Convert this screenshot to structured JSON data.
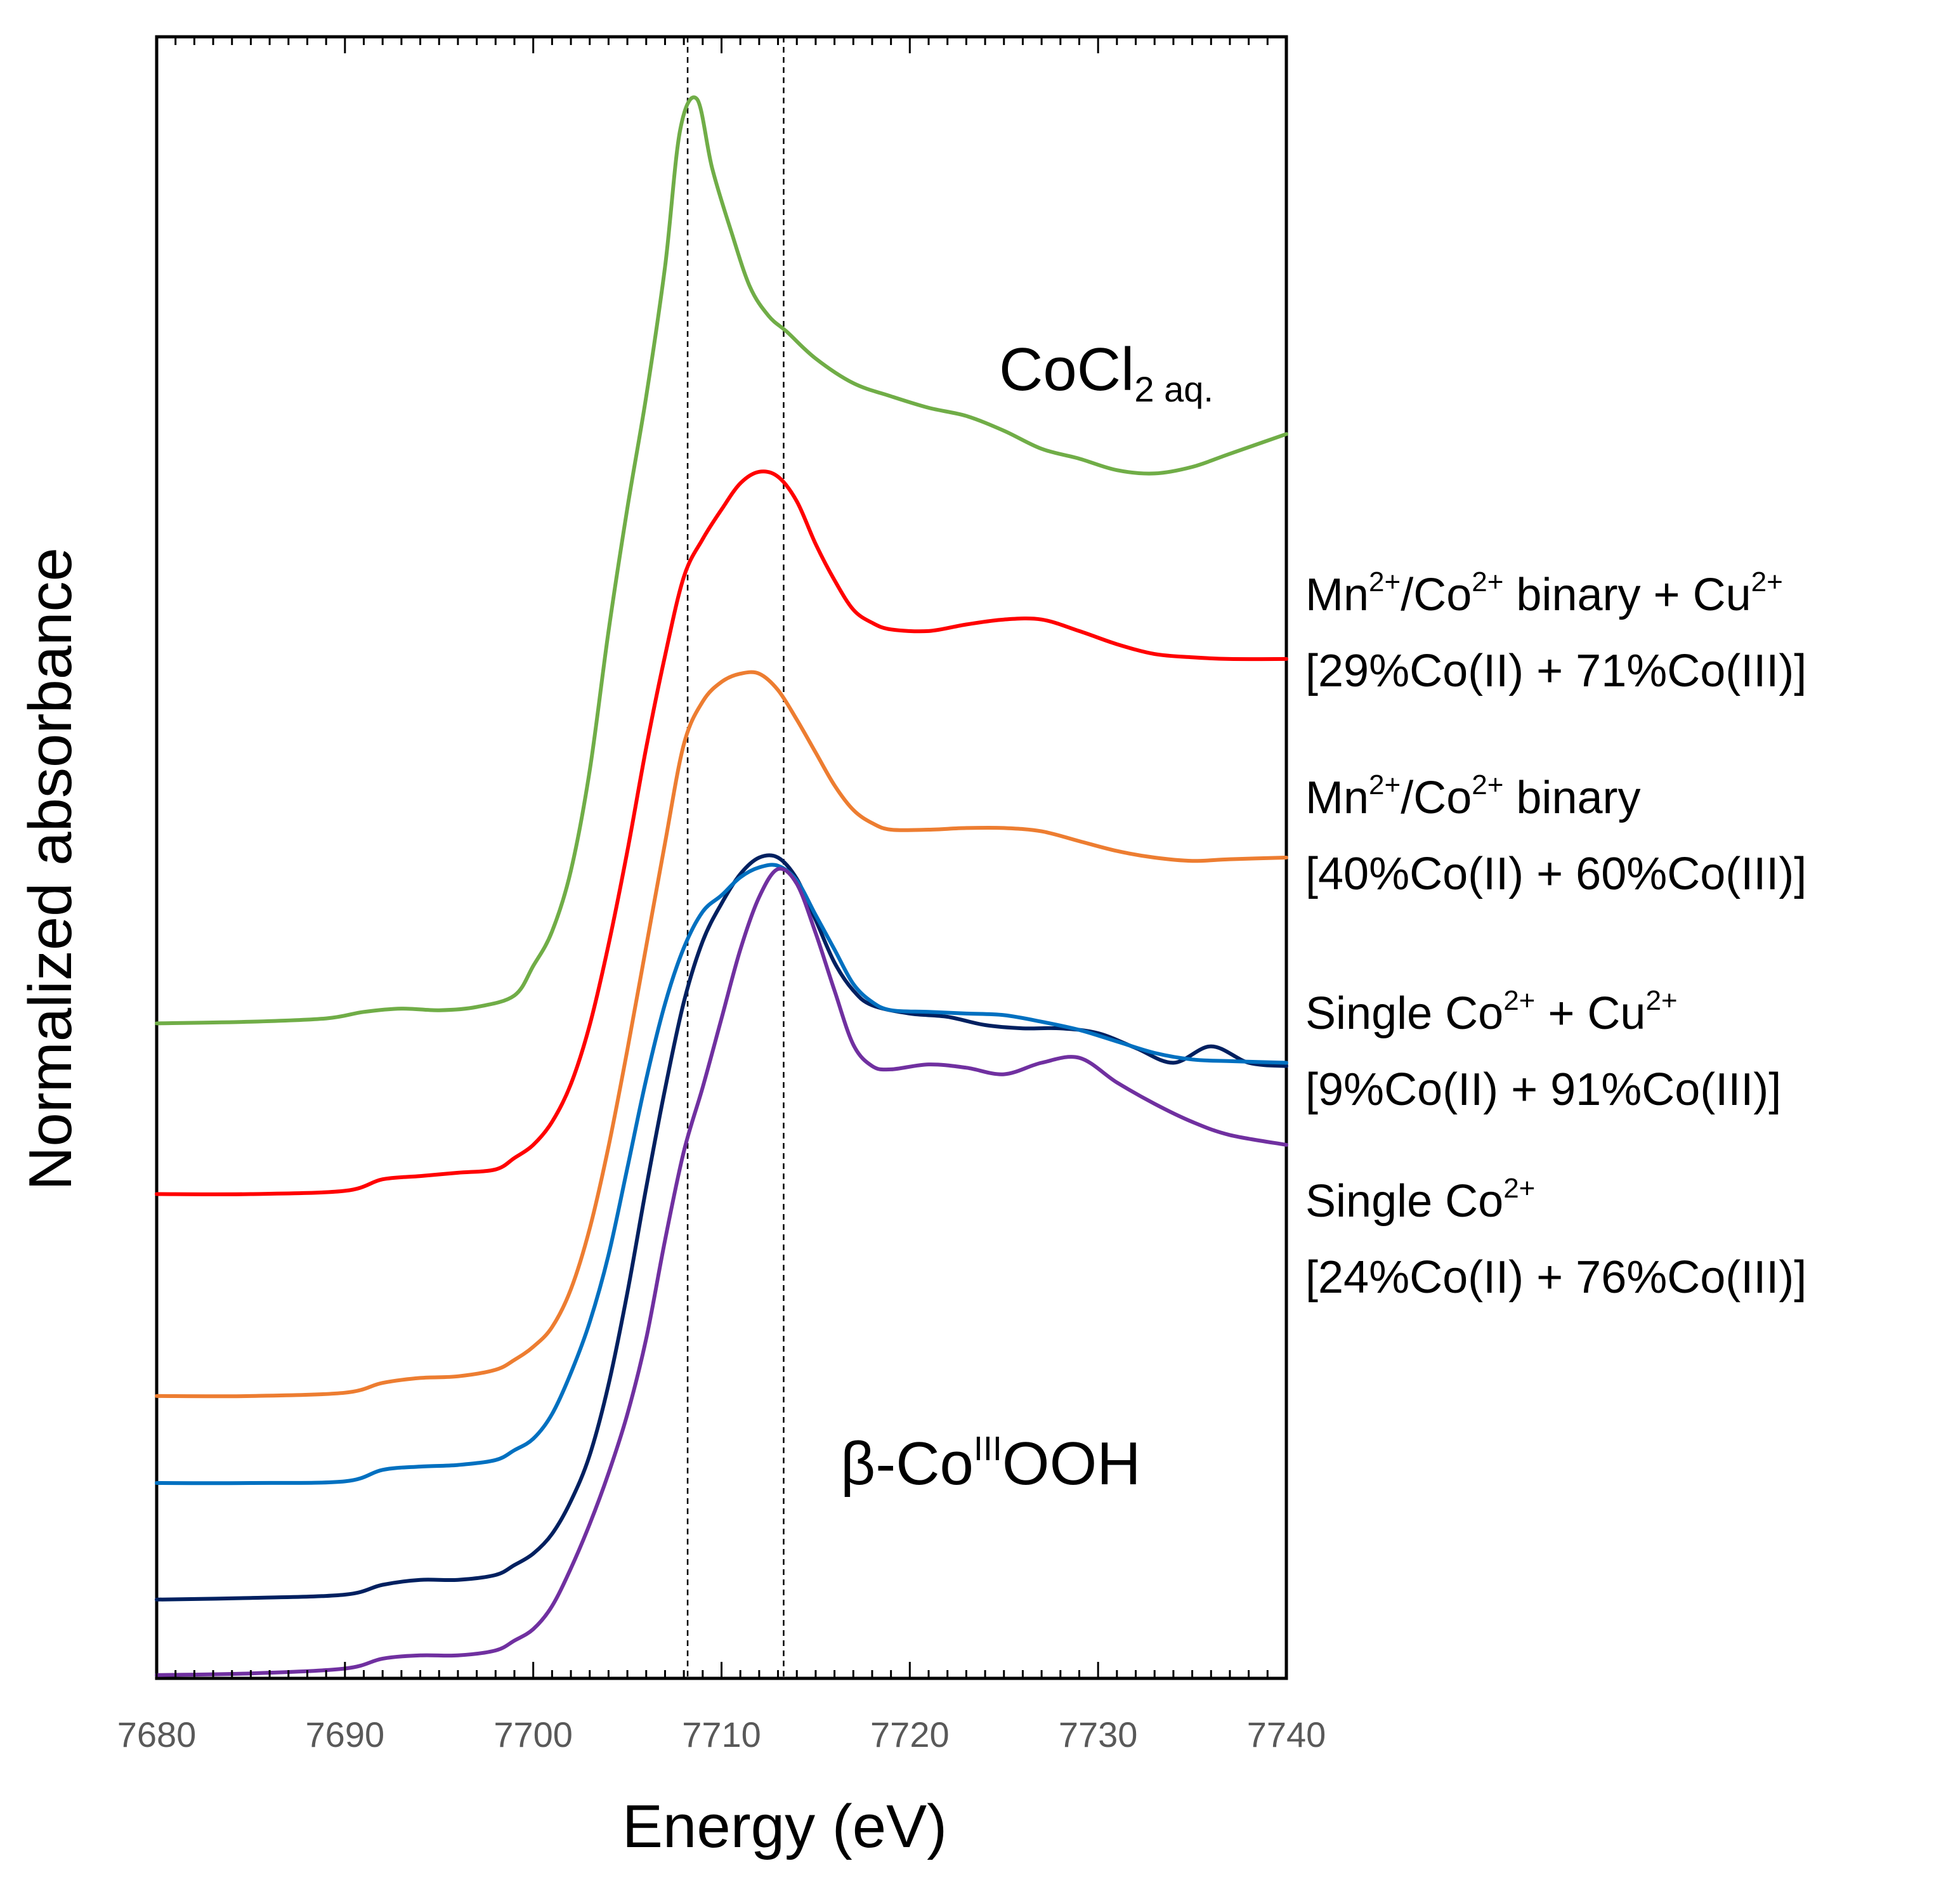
{
  "chart_data": {
    "type": "line",
    "title": "",
    "xlabel": "Energy (eV)",
    "ylabel": "Normalized absorbance",
    "xlim": [
      7680,
      7740
    ],
    "xticks": [
      "7680",
      "7690",
      "7700",
      "7710",
      "7720",
      "7730",
      "7740"
    ],
    "ylim": [
      0,
      1
    ],
    "grid": false,
    "reference_lines_x": [
      7708.2,
      7713.3
    ],
    "series": [
      {
        "name": "CoCl2 aq.",
        "color": "#70ad47",
        "label_parts": {
          "main": "CoCl",
          "sub": "2",
          "suffix": " aq."
        },
        "points": [
          [
            7680,
            0.601
          ],
          [
            7685,
            0.6
          ],
          [
            7689,
            0.598
          ],
          [
            7691,
            0.594
          ],
          [
            7693,
            0.592
          ],
          [
            7695,
            0.593
          ],
          [
            7697,
            0.591
          ],
          [
            7699,
            0.584
          ],
          [
            7700,
            0.566
          ],
          [
            7701,
            0.545
          ],
          [
            7702,
            0.508
          ],
          [
            7703,
            0.447
          ],
          [
            7704,
            0.362
          ],
          [
            7705,
            0.287
          ],
          [
            7706,
            0.219
          ],
          [
            7707,
            0.14
          ],
          [
            7707.8,
            0.057
          ],
          [
            7708.7,
            0.038
          ],
          [
            7709.5,
            0.08
          ],
          [
            7710.5,
            0.118
          ],
          [
            7711.5,
            0.152
          ],
          [
            7712.5,
            0.17
          ],
          [
            7713.5,
            0.18
          ],
          [
            7715,
            0.196
          ],
          [
            7717,
            0.211
          ],
          [
            7719,
            0.219
          ],
          [
            7721,
            0.226
          ],
          [
            7723,
            0.231
          ],
          [
            7725,
            0.24
          ],
          [
            7727,
            0.251
          ],
          [
            7729,
            0.257
          ],
          [
            7731,
            0.264
          ],
          [
            7733,
            0.266
          ],
          [
            7735,
            0.262
          ],
          [
            7737,
            0.254
          ],
          [
            7740,
            0.242
          ]
        ]
      },
      {
        "name": "Mn2+/Co2+ binary + Cu2+",
        "subtitle": "[29%Co(II) + 71%Co(III)]",
        "color": "#ff0000",
        "label_parts": {
          "a": "Mn",
          "a_sup": "2+",
          "b": "/Co",
          "b_sup": "2+",
          "c": " binary + Cu",
          "c_sup": "2+"
        },
        "points": [
          [
            7680,
            0.705
          ],
          [
            7685,
            0.705
          ],
          [
            7690,
            0.703
          ],
          [
            7692,
            0.696
          ],
          [
            7694,
            0.694
          ],
          [
            7696,
            0.692
          ],
          [
            7698,
            0.69
          ],
          [
            7699,
            0.683
          ],
          [
            7700,
            0.675
          ],
          [
            7701,
            0.661
          ],
          [
            7702,
            0.638
          ],
          [
            7703,
            0.602
          ],
          [
            7704,
            0.553
          ],
          [
            7705,
            0.496
          ],
          [
            7706,
            0.433
          ],
          [
            7707,
            0.377
          ],
          [
            7708,
            0.329
          ],
          [
            7709,
            0.306
          ],
          [
            7710,
            0.288
          ],
          [
            7711,
            0.272
          ],
          [
            7712,
            0.265
          ],
          [
            7713,
            0.268
          ],
          [
            7714,
            0.283
          ],
          [
            7715,
            0.309
          ],
          [
            7716,
            0.331
          ],
          [
            7717,
            0.349
          ],
          [
            7718,
            0.357
          ],
          [
            7719,
            0.361
          ],
          [
            7721,
            0.362
          ],
          [
            7723,
            0.358
          ],
          [
            7725,
            0.355
          ],
          [
            7727,
            0.355
          ],
          [
            7729,
            0.362
          ],
          [
            7731,
            0.37
          ],
          [
            7733,
            0.376
          ],
          [
            7735,
            0.378
          ],
          [
            7737,
            0.379
          ],
          [
            7740,
            0.379
          ]
        ]
      },
      {
        "name": "Mn2+/Co2+ binary",
        "subtitle": "[40%Co(II) + 60%Co(III)]",
        "color": "#ed7d31",
        "label_parts": {
          "a": "Mn",
          "a_sup": "2+",
          "b": "/Co",
          "b_sup": "2+",
          "c": " binary",
          "c_sup": ""
        },
        "points": [
          [
            7680,
            0.828
          ],
          [
            7685,
            0.828
          ],
          [
            7690,
            0.826
          ],
          [
            7692,
            0.82
          ],
          [
            7694,
            0.817
          ],
          [
            7696,
            0.816
          ],
          [
            7698,
            0.812
          ],
          [
            7699,
            0.806
          ],
          [
            7700,
            0.798
          ],
          [
            7701,
            0.786
          ],
          [
            7702,
            0.763
          ],
          [
            7703,
            0.726
          ],
          [
            7704,
            0.676
          ],
          [
            7705,
            0.617
          ],
          [
            7706,
            0.554
          ],
          [
            7707,
            0.491
          ],
          [
            7708,
            0.431
          ],
          [
            7709,
            0.405
          ],
          [
            7710,
            0.393
          ],
          [
            7711,
            0.388
          ],
          [
            7712,
            0.388
          ],
          [
            7713,
            0.398
          ],
          [
            7714,
            0.416
          ],
          [
            7715,
            0.436
          ],
          [
            7716,
            0.456
          ],
          [
            7717,
            0.471
          ],
          [
            7718,
            0.479
          ],
          [
            7719,
            0.483
          ],
          [
            7721,
            0.483
          ],
          [
            7723,
            0.482
          ],
          [
            7725,
            0.482
          ],
          [
            7727,
            0.484
          ],
          [
            7729,
            0.49
          ],
          [
            7731,
            0.496
          ],
          [
            7733,
            0.5
          ],
          [
            7735,
            0.502
          ],
          [
            7737,
            0.501
          ],
          [
            7740,
            0.5
          ]
        ]
      },
      {
        "name": "Single Co2+ + Cu2+",
        "subtitle": "[9%Co(II) + 91%Co(III)]",
        "color": "#002060",
        "label_parts": {
          "a": "Single Co",
          "a_sup": "2+",
          "b": " + Cu",
          "b_sup": "2+",
          "c": "",
          "c_sup": ""
        },
        "points": [
          [
            7680,
            0.952
          ],
          [
            7685,
            0.951
          ],
          [
            7690,
            0.949
          ],
          [
            7692,
            0.943
          ],
          [
            7694,
            0.94
          ],
          [
            7696,
            0.94
          ],
          [
            7698,
            0.937
          ],
          [
            7699,
            0.931
          ],
          [
            7700,
            0.924
          ],
          [
            7701,
            0.912
          ],
          [
            7702,
            0.892
          ],
          [
            7703,
            0.864
          ],
          [
            7704,
            0.821
          ],
          [
            7705,
            0.765
          ],
          [
            7706,
            0.701
          ],
          [
            7707,
            0.641
          ],
          [
            7708,
            0.588
          ],
          [
            7709,
            0.551
          ],
          [
            7710,
            0.528
          ],
          [
            7711,
            0.51
          ],
          [
            7712,
            0.5
          ],
          [
            7713,
            0.5
          ],
          [
            7714,
            0.513
          ],
          [
            7715,
            0.538
          ],
          [
            7716,
            0.564
          ],
          [
            7717,
            0.581
          ],
          [
            7718,
            0.59
          ],
          [
            7720,
            0.595
          ],
          [
            7722,
            0.597
          ],
          [
            7724,
            0.602
          ],
          [
            7726,
            0.604
          ],
          [
            7728,
            0.604
          ],
          [
            7730,
            0.607
          ],
          [
            7732,
            0.616
          ],
          [
            7734,
            0.625
          ],
          [
            7736,
            0.615
          ],
          [
            7738,
            0.625
          ],
          [
            7740,
            0.627
          ]
        ]
      },
      {
        "name": "Single Co2+",
        "subtitle": "[24%Co(II) + 76%Co(III)]",
        "color": "#0070c0",
        "label_parts": {
          "a": "Single Co",
          "a_sup": "2+",
          "b": "",
          "b_sup": "",
          "c": "",
          "c_sup": ""
        },
        "points": [
          [
            7680,
            0.881
          ],
          [
            7685,
            0.881
          ],
          [
            7690,
            0.88
          ],
          [
            7692,
            0.873
          ],
          [
            7694,
            0.871
          ],
          [
            7696,
            0.87
          ],
          [
            7698,
            0.867
          ],
          [
            7699,
            0.861
          ],
          [
            7700,
            0.854
          ],
          [
            7701,
            0.839
          ],
          [
            7702,
            0.814
          ],
          [
            7703,
            0.783
          ],
          [
            7704,
            0.742
          ],
          [
            7705,
            0.689
          ],
          [
            7706,
            0.635
          ],
          [
            7707,
            0.589
          ],
          [
            7708,
            0.555
          ],
          [
            7709,
            0.533
          ],
          [
            7710,
            0.523
          ],
          [
            7711,
            0.512
          ],
          [
            7712,
            0.506
          ],
          [
            7713,
            0.505
          ],
          [
            7714,
            0.514
          ],
          [
            7715,
            0.535
          ],
          [
            7716,
            0.556
          ],
          [
            7717,
            0.577
          ],
          [
            7718,
            0.588
          ],
          [
            7719,
            0.593
          ],
          [
            7721,
            0.594
          ],
          [
            7723,
            0.595
          ],
          [
            7725,
            0.596
          ],
          [
            7727,
            0.6
          ],
          [
            7729,
            0.605
          ],
          [
            7731,
            0.612
          ],
          [
            7733,
            0.619
          ],
          [
            7735,
            0.623
          ],
          [
            7737,
            0.624
          ],
          [
            7740,
            0.625
          ]
        ]
      },
      {
        "name": "β-CoIIIOOH",
        "color": "#7030a0",
        "label_parts": {
          "main": "β-Co",
          "sup": "III",
          "suffix": "OOH"
        },
        "points": [
          [
            7680,
            0.998
          ],
          [
            7685,
            0.997
          ],
          [
            7690,
            0.994
          ],
          [
            7692,
            0.988
          ],
          [
            7694,
            0.986
          ],
          [
            7696,
            0.986
          ],
          [
            7698,
            0.983
          ],
          [
            7699,
            0.977
          ],
          [
            7700,
            0.97
          ],
          [
            7701,
            0.956
          ],
          [
            7702,
            0.933
          ],
          [
            7703,
            0.906
          ],
          [
            7704,
            0.875
          ],
          [
            7705,
            0.839
          ],
          [
            7706,
            0.793
          ],
          [
            7707,
            0.733
          ],
          [
            7708,
            0.679
          ],
          [
            7709,
            0.64
          ],
          [
            7710,
            0.598
          ],
          [
            7711,
            0.556
          ],
          [
            7712,
            0.524
          ],
          [
            7713,
            0.507
          ],
          [
            7714,
            0.516
          ],
          [
            7715,
            0.546
          ],
          [
            7716,
            0.581
          ],
          [
            7717,
            0.614
          ],
          [
            7718,
            0.627
          ],
          [
            7719,
            0.629
          ],
          [
            7721,
            0.626
          ],
          [
            7723,
            0.628
          ],
          [
            7725,
            0.632
          ],
          [
            7727,
            0.625
          ],
          [
            7729,
            0.622
          ],
          [
            7731,
            0.637
          ],
          [
            7733,
            0.65
          ],
          [
            7735,
            0.661
          ],
          [
            7737,
            0.669
          ],
          [
            7740,
            0.675
          ]
        ]
      }
    ]
  }
}
